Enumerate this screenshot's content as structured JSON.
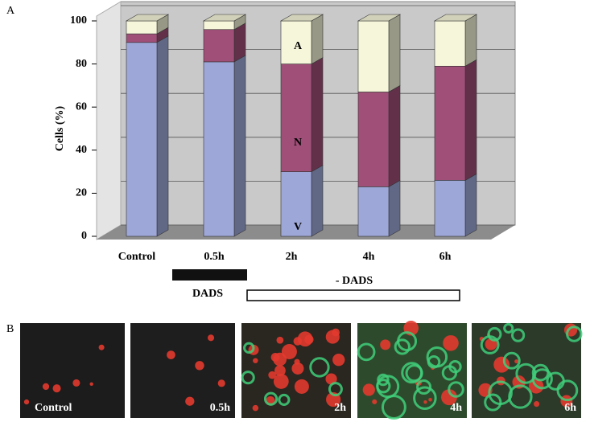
{
  "chart_data": {
    "type": "stacked-bar-3d",
    "ylabel": "Cells (%)",
    "categories": [
      "Control",
      "0.5h",
      "2h",
      "4h",
      "6h"
    ],
    "series": [
      {
        "name": "V",
        "color": "#9ea8d8",
        "values": [
          90,
          81,
          30,
          23,
          26
        ]
      },
      {
        "name": "N",
        "color": "#a04f78",
        "values": [
          4,
          15,
          50,
          44,
          53
        ]
      },
      {
        "name": "A",
        "color": "#f6f6da",
        "values": [
          6,
          4,
          20,
          33,
          21
        ]
      }
    ],
    "ylim": [
      0,
      100
    ],
    "yticks": [
      0,
      20,
      40,
      60,
      80,
      100
    ],
    "grid": true
  },
  "panel_labels": [
    "A",
    "B"
  ],
  "treatment": {
    "with": "DADS",
    "without": "- DADS"
  },
  "micrographs": [
    "Control",
    "0.5h",
    "2h",
    "4h",
    "6h"
  ]
}
